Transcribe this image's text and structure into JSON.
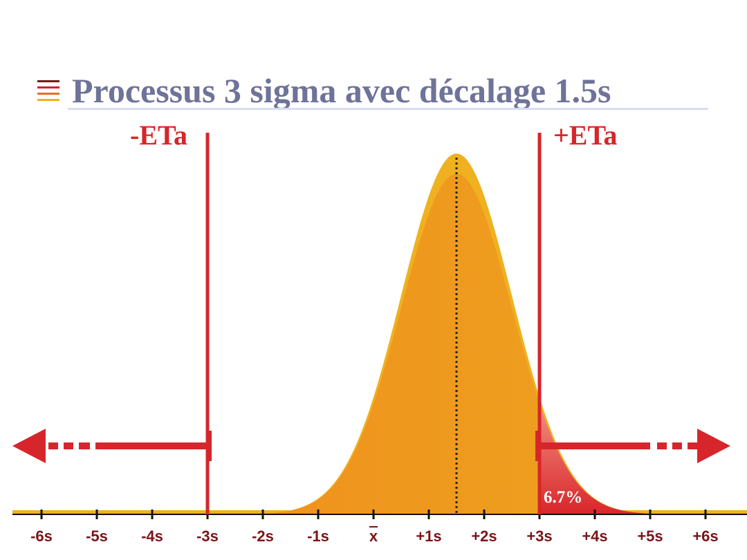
{
  "title": "Processus 3 sigma avec décalage 1.5s",
  "limits": {
    "lower_label": "-ETa",
    "upper_label": "+ETa",
    "lower_at": -3,
    "upper_at": 3
  },
  "shift": 1.5,
  "tail_percent": "6.7%",
  "axis": {
    "ticks": [
      {
        "value": -6,
        "label": "-6s"
      },
      {
        "value": -5,
        "label": "-5s"
      },
      {
        "value": -4,
        "label": "-4s"
      },
      {
        "value": -3,
        "label": "-3s"
      },
      {
        "value": -2,
        "label": "-2s"
      },
      {
        "value": -1,
        "label": "-1s"
      },
      {
        "value": 0,
        "label": "x"
      },
      {
        "value": 1,
        "label": "+1s"
      },
      {
        "value": 2,
        "label": "+2s"
      },
      {
        "value": 3,
        "label": "+3s"
      },
      {
        "value": 4,
        "label": "+4s"
      },
      {
        "value": 5,
        "label": "+5s"
      },
      {
        "value": 6,
        "label": "+6s"
      }
    ]
  },
  "colors": {
    "title": "#6f7399",
    "limit": "#d6262b",
    "tick_label": "#7a1418",
    "curve_outer": "#efb11f",
    "curve_inner": "#f0921f",
    "tail": "#e2403a",
    "title_icon_lines": [
      "#7a1418",
      "#c4262b",
      "#e86a2a",
      "#efb11f"
    ]
  }
}
